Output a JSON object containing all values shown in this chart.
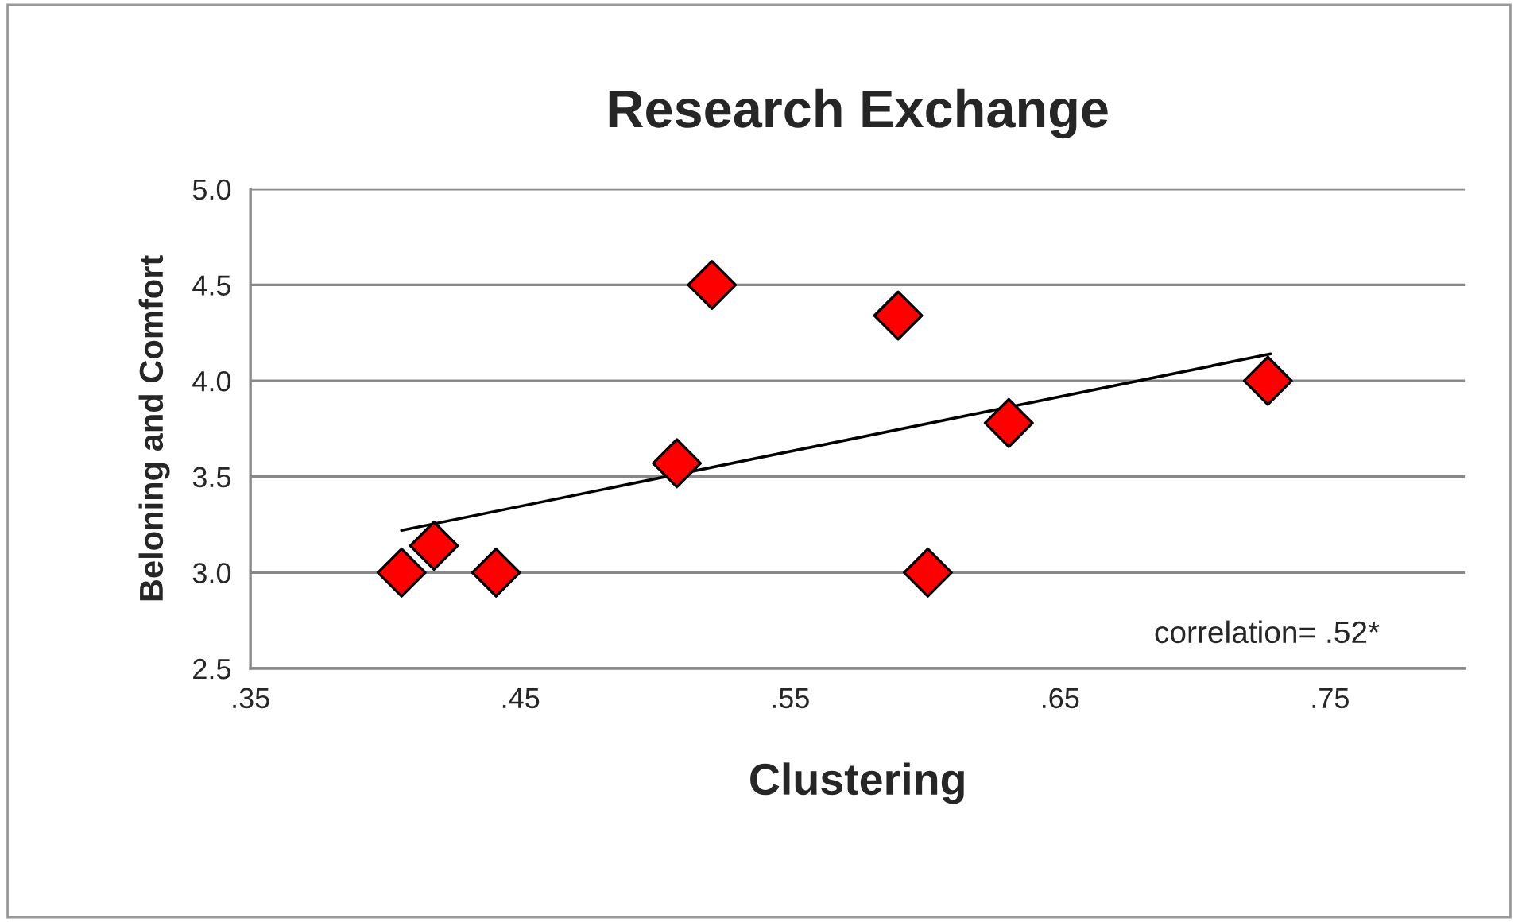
{
  "chart_data": {
    "type": "scatter",
    "title": "Research Exchange",
    "xlabel": "Clustering",
    "ylabel": "Beloning and Comfort",
    "xlim": [
      0.35,
      0.8
    ],
    "xticks": [
      {
        "value": 0.35,
        "label": ".35"
      },
      {
        "value": 0.45,
        "label": ".45"
      },
      {
        "value": 0.55,
        "label": ".55"
      },
      {
        "value": 0.65,
        "label": ".65"
      },
      {
        "value": 0.75,
        "label": ".75"
      }
    ],
    "ylim": [
      2.5,
      5.0
    ],
    "yticks": [
      {
        "value": 2.5,
        "label": "2.5"
      },
      {
        "value": 3.0,
        "label": "3.0"
      },
      {
        "value": 3.5,
        "label": "3.5"
      },
      {
        "value": 4.0,
        "label": "4.0"
      },
      {
        "value": 4.5,
        "label": "4.5"
      },
      {
        "value": 5.0,
        "label": "5.0"
      }
    ],
    "grid": "y",
    "legend": false,
    "series": [
      {
        "marker": "diamond",
        "color": "#ff0000",
        "x": [
          0.406,
          0.418,
          0.441,
          0.508,
          0.521,
          0.59,
          0.601,
          0.631,
          0.727
        ],
        "values": [
          3.0,
          3.14,
          3.0,
          3.57,
          4.5,
          4.34,
          3.0,
          3.78,
          4.0
        ]
      },
      {
        "type": "line",
        "color": "#000000",
        "x": [
          0.406,
          0.728
        ],
        "values": [
          3.22,
          4.14
        ]
      }
    ],
    "annotations": [
      "correlation= .52*"
    ]
  }
}
